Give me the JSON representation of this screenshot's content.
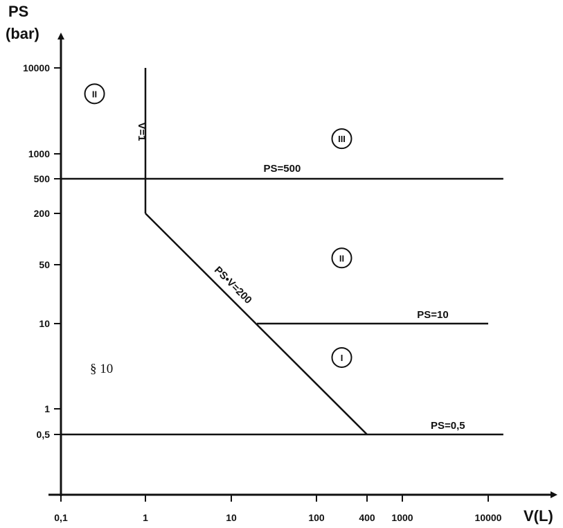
{
  "chart_data": {
    "type": "line",
    "xlabel": "V(L)",
    "ylabel_line1": "PS",
    "ylabel_line2": "(bar)",
    "x_ticks": [
      "0,1",
      "1",
      "10",
      "100",
      "400",
      "1000",
      "10000"
    ],
    "y_ticks": [
      "0,5",
      "1",
      "10",
      "50",
      "200",
      "500",
      "1000",
      "10000"
    ],
    "series": [
      {
        "label": "PS=500",
        "points": [
          [
            0.1,
            500
          ],
          [
            15000,
            500
          ]
        ]
      },
      {
        "label": "V=1",
        "points": [
          [
            1,
            10000
          ],
          [
            1,
            200
          ]
        ]
      },
      {
        "label": "PS•V=200",
        "points": [
          [
            1,
            200
          ],
          [
            400,
            0.5
          ]
        ]
      },
      {
        "label": "PS=10",
        "points": [
          [
            20,
            10
          ],
          [
            10000,
            10
          ]
        ]
      },
      {
        "label": "PS=0,5",
        "points": [
          [
            0.1,
            0.5
          ],
          [
            15000,
            0.5
          ]
        ]
      }
    ],
    "zones": [
      {
        "label": "II",
        "x": 0.25,
        "y": 5000
      },
      {
        "label": "III",
        "x": 200,
        "y": 1500
      },
      {
        "label": "II",
        "x": 200,
        "y": 60
      },
      {
        "label": "I",
        "x": 200,
        "y": 4
      }
    ],
    "annotation": "§ 10"
  }
}
